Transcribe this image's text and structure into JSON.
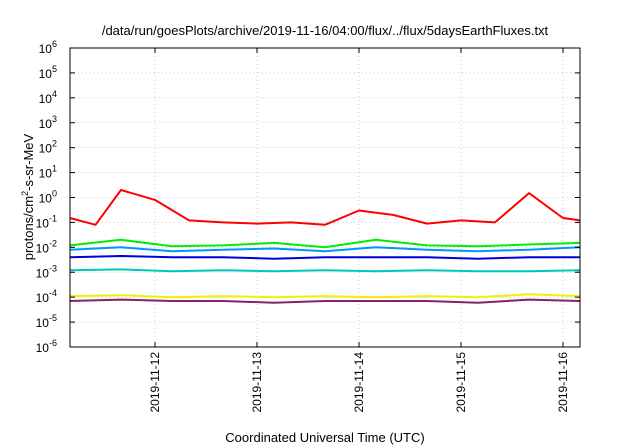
{
  "chart_data": {
    "type": "line",
    "title": "/data/run/goesPlots/archive/2019-11-16/04:00/flux/../flux/5daysEarthFluxes.txt",
    "xlabel": "Coordinated Universal Time (UTC)",
    "ylabel": "protons/cm²-s-sr-MeV",
    "ylabel_parts": [
      "protons/cm",
      "2",
      "-s-sr-MeV"
    ],
    "y_scale": "log",
    "ylim": [
      1e-06,
      1000000.0
    ],
    "y_ticks": [
      {
        "exp": "-6",
        "value": 1e-06
      },
      {
        "exp": "-5",
        "value": 1e-05
      },
      {
        "exp": "-4",
        "value": 0.0001
      },
      {
        "exp": "-3",
        "value": 0.001
      },
      {
        "exp": "-2",
        "value": 0.01
      },
      {
        "exp": "-1",
        "value": 0.1
      },
      {
        "exp": "0",
        "value": 1
      },
      {
        "exp": "1",
        "value": 10
      },
      {
        "exp": "2",
        "value": 100
      },
      {
        "exp": "3",
        "value": 1000
      },
      {
        "exp": "4",
        "value": 10000
      },
      {
        "exp": "5",
        "value": 100000
      },
      {
        "exp": "6",
        "value": 1000000
      }
    ],
    "y_tick_base": "10",
    "xlim": [
      "2019-11-11 04:00",
      "2019-11-16 04:00"
    ],
    "x_tick_labels": [
      "2019-11-12",
      "2019-11-13",
      "2019-11-14",
      "2019-11-15",
      "2019-11-16"
    ],
    "x_tick_values": [
      "2019-11-12 00:00",
      "2019-11-13 00:00",
      "2019-11-14 00:00",
      "2019-11-15 00:00",
      "2019-11-16 00:00"
    ],
    "grid": true,
    "legend": "none",
    "series": [
      {
        "color": "#ff0000",
        "x": [
          "2019-11-11 04:00",
          "2019-11-11 10:00",
          "2019-11-11 16:00",
          "2019-11-12 00:00",
          "2019-11-12 08:00",
          "2019-11-12 16:00",
          "2019-11-13 00:00",
          "2019-11-13 08:00",
          "2019-11-13 16:00",
          "2019-11-14 00:00",
          "2019-11-14 08:00",
          "2019-11-14 16:00",
          "2019-11-15 00:00",
          "2019-11-15 08:00",
          "2019-11-15 16:00",
          "2019-11-16 00:00",
          "2019-11-16 04:00"
        ],
        "values": [
          0.15,
          0.08,
          2.0,
          0.8,
          0.12,
          0.1,
          0.09,
          0.1,
          0.08,
          0.3,
          0.2,
          0.09,
          0.12,
          0.1,
          1.5,
          0.15,
          0.12
        ]
      },
      {
        "color": "#00ee00",
        "x": [
          "2019-11-11 04:00",
          "2019-11-11 16:00",
          "2019-11-12 04:00",
          "2019-11-12 16:00",
          "2019-11-13 04:00",
          "2019-11-13 16:00",
          "2019-11-14 04:00",
          "2019-11-14 16:00",
          "2019-11-15 04:00",
          "2019-11-15 16:00",
          "2019-11-16 04:00"
        ],
        "values": [
          0.012,
          0.02,
          0.011,
          0.012,
          0.015,
          0.01,
          0.02,
          0.012,
          0.011,
          0.013,
          0.015
        ]
      },
      {
        "color": "#0096ff",
        "x": [
          "2019-11-11 04:00",
          "2019-11-11 16:00",
          "2019-11-12 04:00",
          "2019-11-12 16:00",
          "2019-11-13 04:00",
          "2019-11-13 16:00",
          "2019-11-14 04:00",
          "2019-11-14 16:00",
          "2019-11-15 04:00",
          "2019-11-15 16:00",
          "2019-11-16 04:00"
        ],
        "values": [
          0.008,
          0.01,
          0.007,
          0.008,
          0.009,
          0.007,
          0.01,
          0.008,
          0.007,
          0.008,
          0.01
        ]
      },
      {
        "color": "#0000dd",
        "x": [
          "2019-11-11 04:00",
          "2019-11-11 16:00",
          "2019-11-12 04:00",
          "2019-11-12 16:00",
          "2019-11-13 04:00",
          "2019-11-13 16:00",
          "2019-11-14 04:00",
          "2019-11-14 16:00",
          "2019-11-15 04:00",
          "2019-11-15 16:00",
          "2019-11-16 04:00"
        ],
        "values": [
          0.004,
          0.0045,
          0.004,
          0.004,
          0.0035,
          0.004,
          0.004,
          0.004,
          0.0035,
          0.004,
          0.004
        ]
      },
      {
        "color": "#00c8b4",
        "x": [
          "2019-11-11 04:00",
          "2019-11-11 16:00",
          "2019-11-12 04:00",
          "2019-11-12 16:00",
          "2019-11-13 04:00",
          "2019-11-13 16:00",
          "2019-11-14 04:00",
          "2019-11-14 16:00",
          "2019-11-15 04:00",
          "2019-11-15 16:00",
          "2019-11-16 04:00"
        ],
        "values": [
          0.0012,
          0.0013,
          0.0011,
          0.0012,
          0.0011,
          0.0012,
          0.0011,
          0.0012,
          0.0011,
          0.0011,
          0.0012
        ]
      },
      {
        "color": "#f0f000",
        "x": [
          "2019-11-11 04:00",
          "2019-11-11 16:00",
          "2019-11-12 04:00",
          "2019-11-12 16:00",
          "2019-11-13 04:00",
          "2019-11-13 16:00",
          "2019-11-14 04:00",
          "2019-11-14 16:00",
          "2019-11-15 04:00",
          "2019-11-15 16:00",
          "2019-11-16 04:00"
        ],
        "values": [
          0.00011,
          0.00012,
          0.0001,
          0.00011,
          0.0001,
          0.00011,
          0.0001,
          0.00011,
          0.0001,
          0.00013,
          0.00011
        ]
      },
      {
        "color": "#8b2064",
        "x": [
          "2019-11-11 04:00",
          "2019-11-11 16:00",
          "2019-11-12 04:00",
          "2019-11-12 16:00",
          "2019-11-13 04:00",
          "2019-11-13 16:00",
          "2019-11-14 04:00",
          "2019-11-14 16:00",
          "2019-11-15 04:00",
          "2019-11-15 16:00",
          "2019-11-16 04:00"
        ],
        "values": [
          7e-05,
          8e-05,
          7e-05,
          7e-05,
          6e-05,
          7e-05,
          7e-05,
          7e-05,
          6e-05,
          8e-05,
          7e-05
        ]
      }
    ]
  }
}
